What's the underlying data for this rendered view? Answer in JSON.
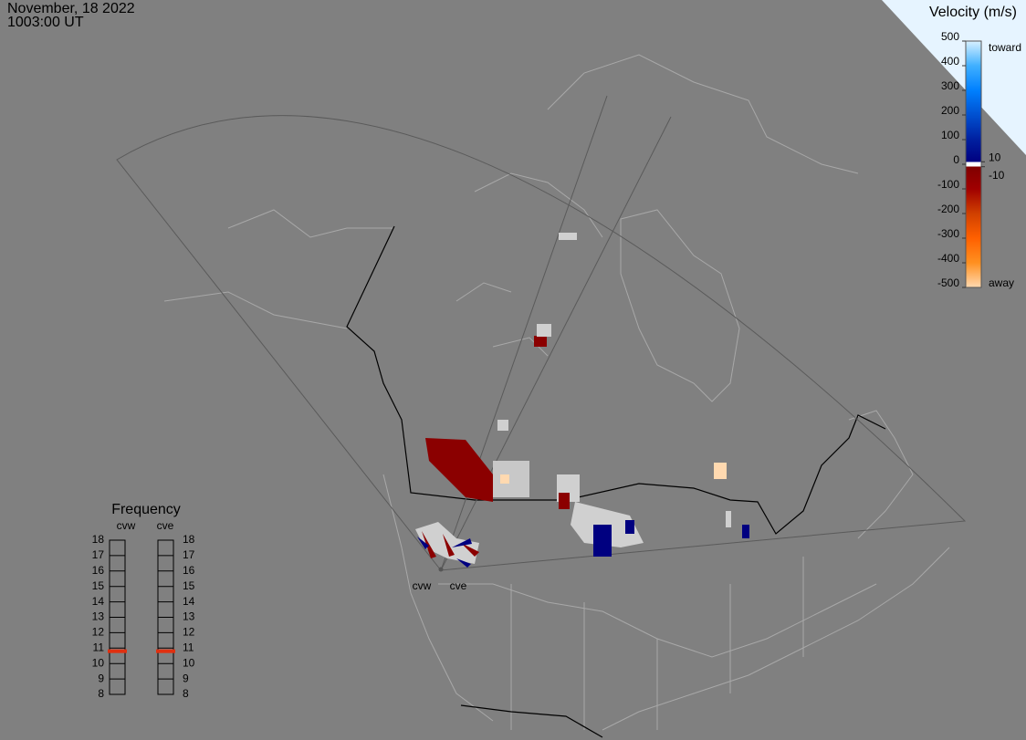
{
  "header": {
    "date": "November, 18 2022",
    "time": "1003:00 UT"
  },
  "colorbar": {
    "title": "Velocity (m/s)",
    "lim": [
      -500,
      500
    ],
    "ticks": [
      500,
      400,
      300,
      200,
      100,
      0,
      -100,
      -200,
      -300,
      -400,
      -500
    ],
    "near_zero_ticks": [
      10,
      -10
    ],
    "toward_label": "toward",
    "away_label": "away"
  },
  "frequency": {
    "title": "Frequency",
    "lim": [
      8,
      18
    ],
    "ticks": [
      8,
      9,
      10,
      11,
      12,
      13,
      14,
      15,
      16,
      17,
      18
    ],
    "radars": [
      {
        "name": "cvw",
        "value": 10.8
      },
      {
        "name": "cve",
        "value": 10.8
      }
    ]
  },
  "radar_sites": [
    "cvw",
    "cve"
  ]
}
